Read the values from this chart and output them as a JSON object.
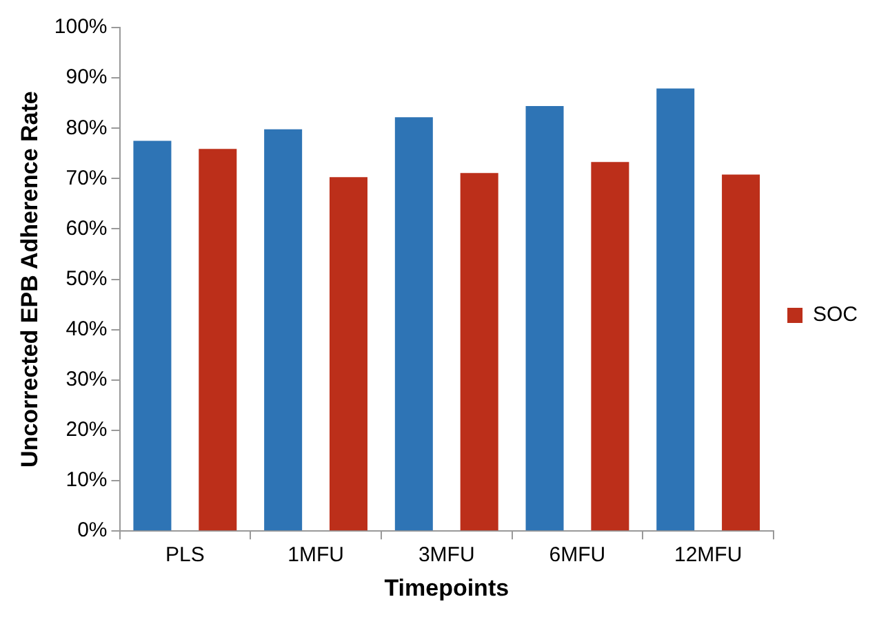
{
  "chart_data": {
    "type": "bar",
    "xlabel": "Timepoints",
    "ylabel": "Uncorrected EPB Adherence Rate",
    "categories": [
      "PLS",
      "1MFU",
      "3MFU",
      "6MFU",
      "12MFU"
    ],
    "series": [
      {
        "color": "#2e74b5",
        "values": [
          77.5,
          79.8,
          82.2,
          84.4,
          87.9
        ]
      },
      {
        "name": "SOC",
        "color": "#bc2f1a",
        "values": [
          75.9,
          70.3,
          71.1,
          73.3,
          70.8
        ]
      }
    ],
    "ylim": [
      0,
      100
    ],
    "yticks": [
      {
        "value": 0,
        "label": "0%"
      },
      {
        "value": 10,
        "label": "10%"
      },
      {
        "value": 20,
        "label": "20%"
      },
      {
        "value": 30,
        "label": "30%"
      },
      {
        "value": 40,
        "label": "40%"
      },
      {
        "value": 50,
        "label": "50%"
      },
      {
        "value": 60,
        "label": "60%"
      },
      {
        "value": 70,
        "label": "70%"
      },
      {
        "value": 80,
        "label": "80%"
      },
      {
        "value": 90,
        "label": "90%"
      },
      {
        "value": 100,
        "label": "100%"
      }
    ],
    "grid": false,
    "legend": "right"
  }
}
